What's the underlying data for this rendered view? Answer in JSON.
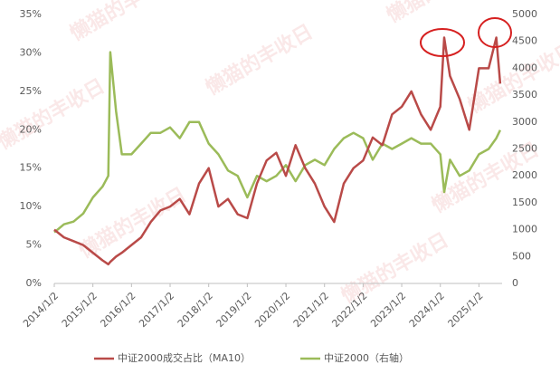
{
  "chart_data": {
    "type": "line",
    "watermark": "懒猫的丰收日",
    "x": [
      2014.0,
      2014.25,
      2014.5,
      2014.75,
      2015.0,
      2015.25,
      2015.4,
      2015.45,
      2015.6,
      2015.75,
      2016.0,
      2016.25,
      2016.5,
      2016.75,
      2017.0,
      2017.25,
      2017.5,
      2017.75,
      2018.0,
      2018.25,
      2018.5,
      2018.75,
      2019.0,
      2019.25,
      2019.5,
      2019.75,
      2020.0,
      2020.25,
      2020.5,
      2020.75,
      2021.0,
      2021.25,
      2021.5,
      2021.75,
      2022.0,
      2022.25,
      2022.5,
      2022.75,
      2023.0,
      2023.25,
      2023.5,
      2023.75,
      2024.0,
      2024.1,
      2024.25,
      2024.5,
      2024.75,
      2025.0,
      2025.25,
      2025.45,
      2025.55
    ],
    "series": [
      {
        "name": "中证2000成交占比（MA10）",
        "color": "#b94a48",
        "axis": "y",
        "values": [
          7,
          6,
          5.5,
          5,
          4,
          3,
          2.5,
          2.8,
          3.5,
          4,
          5,
          6,
          8,
          9.5,
          10,
          11,
          9,
          13,
          15,
          10,
          11,
          9,
          8.5,
          13,
          16,
          17,
          14,
          18,
          15,
          13,
          10,
          8,
          13,
          15,
          16,
          19,
          18,
          22,
          23,
          25,
          22,
          20,
          23,
          32,
          27,
          24,
          20,
          28,
          28,
          32,
          26
        ]
      },
      {
        "name": "中证2000（右轴）",
        "color": "#9bbb59",
        "axis": "y2",
        "values": [
          950,
          1100,
          1150,
          1300,
          1600,
          1800,
          2000,
          4300,
          3200,
          2400,
          2400,
          2600,
          2800,
          2800,
          2900,
          2700,
          3000,
          3000,
          2600,
          2400,
          2100,
          2000,
          1600,
          2000,
          1900,
          2000,
          2200,
          1900,
          2200,
          2300,
          2200,
          2500,
          2700,
          2800,
          2700,
          2300,
          2600,
          2500,
          2600,
          2700,
          2600,
          2600,
          2400,
          1700,
          2300,
          2000,
          2100,
          2400,
          2500,
          2700,
          2850
        ]
      }
    ],
    "xlim": [
      2014,
      2025.6
    ],
    "xticks": [
      {
        "value": 2014,
        "label": "2014/1/2"
      },
      {
        "value": 2015,
        "label": "2015/1/2"
      },
      {
        "value": 2016,
        "label": "2016/1/2"
      },
      {
        "value": 2017,
        "label": "2017/1/2"
      },
      {
        "value": 2018,
        "label": "2018/1/2"
      },
      {
        "value": 2019,
        "label": "2019/1/2"
      },
      {
        "value": 2020,
        "label": "2020/1/2"
      },
      {
        "value": 2021,
        "label": "2021/1/2"
      },
      {
        "value": 2022,
        "label": "2022/1/2"
      },
      {
        "value": 2023,
        "label": "2023/1/2"
      },
      {
        "value": 2024,
        "label": "2024/1/2"
      },
      {
        "value": 2025,
        "label": "2025/1/2"
      }
    ],
    "ylim": [
      0,
      35
    ],
    "yticks": [
      {
        "value": 0,
        "label": "0%"
      },
      {
        "value": 5,
        "label": "5%"
      },
      {
        "value": 10,
        "label": "10%"
      },
      {
        "value": 15,
        "label": "15%"
      },
      {
        "value": 20,
        "label": "20%"
      },
      {
        "value": 25,
        "label": "25%"
      },
      {
        "value": 30,
        "label": "30%"
      },
      {
        "value": 35,
        "label": "35%"
      }
    ],
    "y2lim": [
      0,
      5000
    ],
    "y2ticks": [
      0,
      500,
      1000,
      1500,
      2000,
      2500,
      3000,
      3500,
      4000,
      4500,
      5000
    ]
  }
}
